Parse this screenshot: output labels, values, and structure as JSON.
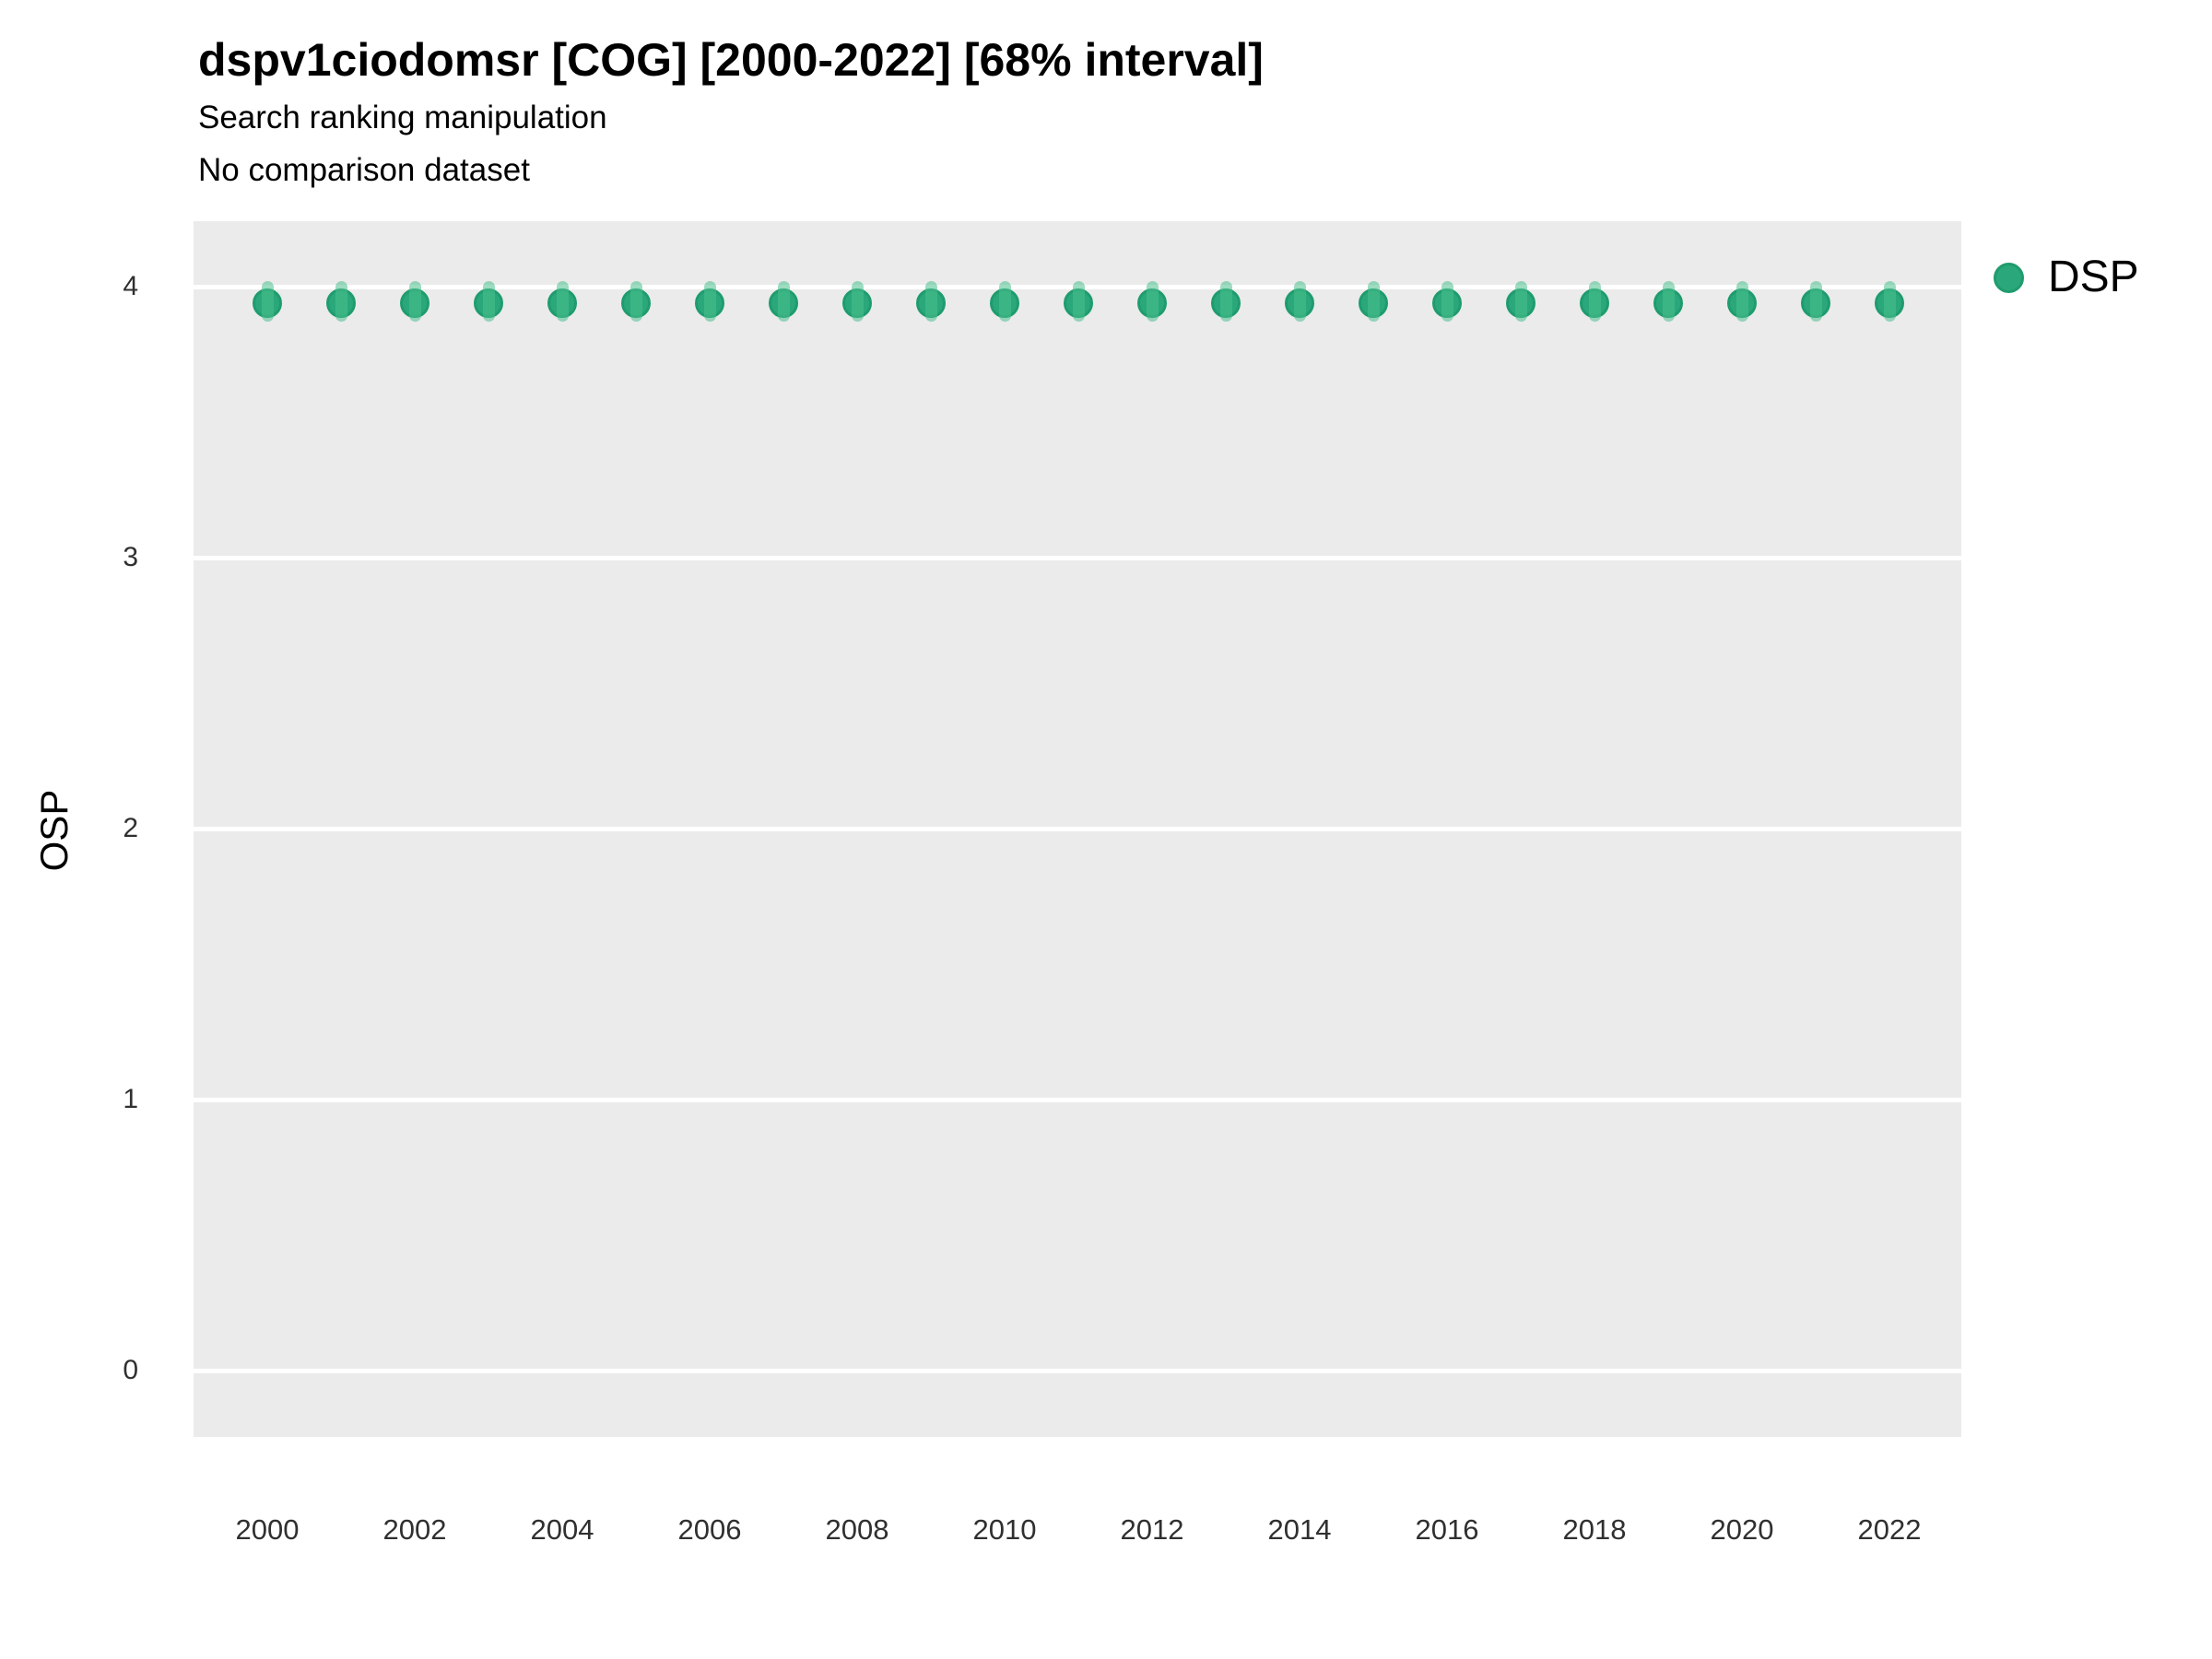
{
  "title": "dspv1ciodomsr [COG] [2000-2022] [68% interval]",
  "subtitle1": "Search ranking manipulation",
  "subtitle2": "No comparison dataset",
  "legend": {
    "position": "right",
    "items": [
      {
        "label": "DSP",
        "color": "#2aa87b"
      }
    ]
  },
  "chart_data": {
    "type": "scatter",
    "title": "dspv1ciodomsr [COG] [2000-2022] [68% interval]",
    "subtitle": "Search ranking manipulation",
    "note": "No comparison dataset",
    "xlabel": "",
    "ylabel": "OSP",
    "x": [
      2000,
      2001,
      2002,
      2003,
      2004,
      2005,
      2006,
      2007,
      2008,
      2009,
      2010,
      2011,
      2012,
      2013,
      2014,
      2015,
      2016,
      2017,
      2018,
      2019,
      2020,
      2021,
      2022
    ],
    "series": [
      {
        "name": "DSP",
        "values": [
          3.94,
          3.94,
          3.94,
          3.94,
          3.94,
          3.94,
          3.94,
          3.94,
          3.94,
          3.94,
          3.94,
          3.94,
          3.94,
          3.94,
          3.94,
          3.94,
          3.94,
          3.94,
          3.94,
          3.94,
          3.94,
          3.94,
          3.94
        ],
        "lower": [
          3.87,
          3.87,
          3.87,
          3.87,
          3.87,
          3.87,
          3.87,
          3.87,
          3.87,
          3.87,
          3.87,
          3.87,
          3.87,
          3.87,
          3.87,
          3.87,
          3.87,
          3.87,
          3.87,
          3.87,
          3.87,
          3.87,
          3.87
        ],
        "upper": [
          4.02,
          4.02,
          4.02,
          4.02,
          4.02,
          4.02,
          4.02,
          4.02,
          4.02,
          4.02,
          4.02,
          4.02,
          4.02,
          4.02,
          4.02,
          4.02,
          4.02,
          4.02,
          4.02,
          4.02,
          4.02,
          4.02,
          4.02
        ],
        "interval": "68%"
      }
    ],
    "xticks": [
      2000,
      2002,
      2004,
      2006,
      2008,
      2010,
      2012,
      2014,
      2016,
      2018,
      2020,
      2022
    ],
    "yticks": [
      0,
      1,
      2,
      3,
      4
    ],
    "xlim": [
      1999,
      2023
    ],
    "ylim": [
      -0.24,
      4.24
    ],
    "grid": "horizontal-major-only",
    "legend_position": "right",
    "panel_bg": "#ebebeb",
    "gridline_color": "#ffffff",
    "point_color": "#2aa87b",
    "point_stroke_color": "#1f9c6e",
    "interval_color": "rgba(74,191,142,0.55)"
  }
}
